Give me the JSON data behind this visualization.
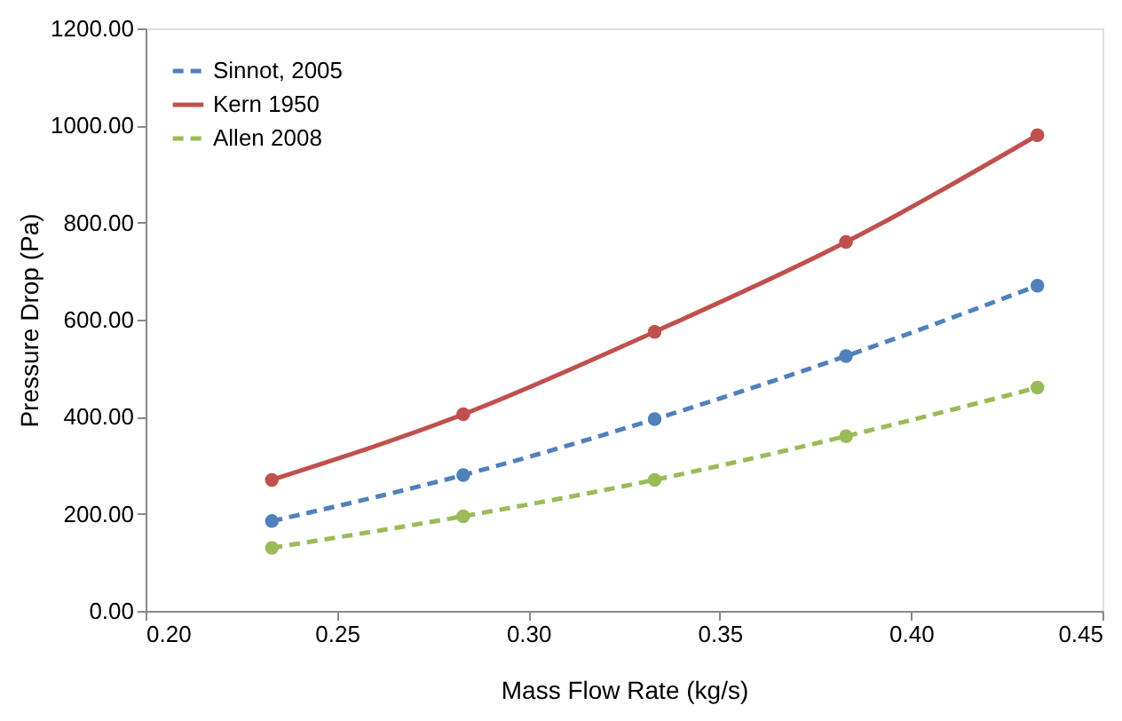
{
  "chart_data": {
    "type": "line",
    "xlabel": "Mass Flow Rate (kg/s)",
    "ylabel": "Pressure Drop (Pa)",
    "x": [
      0.233,
      0.283,
      0.333,
      0.383,
      0.433
    ],
    "series": [
      {
        "name": "Sinnot, 2005",
        "color": "#4f81bd",
        "line_style": "dashed",
        "values": [
          185,
          280,
          395,
          525,
          670
        ]
      },
      {
        "name": "Kern 1950",
        "color": "#c0504d",
        "line_style": "solid",
        "values": [
          270,
          405,
          575,
          760,
          980
        ]
      },
      {
        "name": "Allen 2008",
        "color": "#9bbb59",
        "line_style": "dashed",
        "values": [
          130,
          195,
          270,
          360,
          460
        ]
      }
    ],
    "xlim": [
      0.2,
      0.45
    ],
    "xticks": [
      {
        "value": 0.2,
        "label": "0.20"
      },
      {
        "value": 0.25,
        "label": "0.25"
      },
      {
        "value": 0.3,
        "label": "0.30"
      },
      {
        "value": 0.35,
        "label": "0.35"
      },
      {
        "value": 0.4,
        "label": "0.40"
      },
      {
        "value": 0.45,
        "label": "0.45"
      }
    ],
    "ylim": [
      0,
      1200
    ],
    "yticks": [
      {
        "value": 0,
        "label": "0.00"
      },
      {
        "value": 200,
        "label": "200.00"
      },
      {
        "value": 400,
        "label": "400.00"
      },
      {
        "value": 600,
        "label": "600.00"
      },
      {
        "value": 800,
        "label": "800.00"
      },
      {
        "value": 1000,
        "label": "1000.00"
      },
      {
        "value": 1200,
        "label": "1200.00"
      }
    ],
    "marker": "circle",
    "grid": false,
    "legend": "top left"
  }
}
